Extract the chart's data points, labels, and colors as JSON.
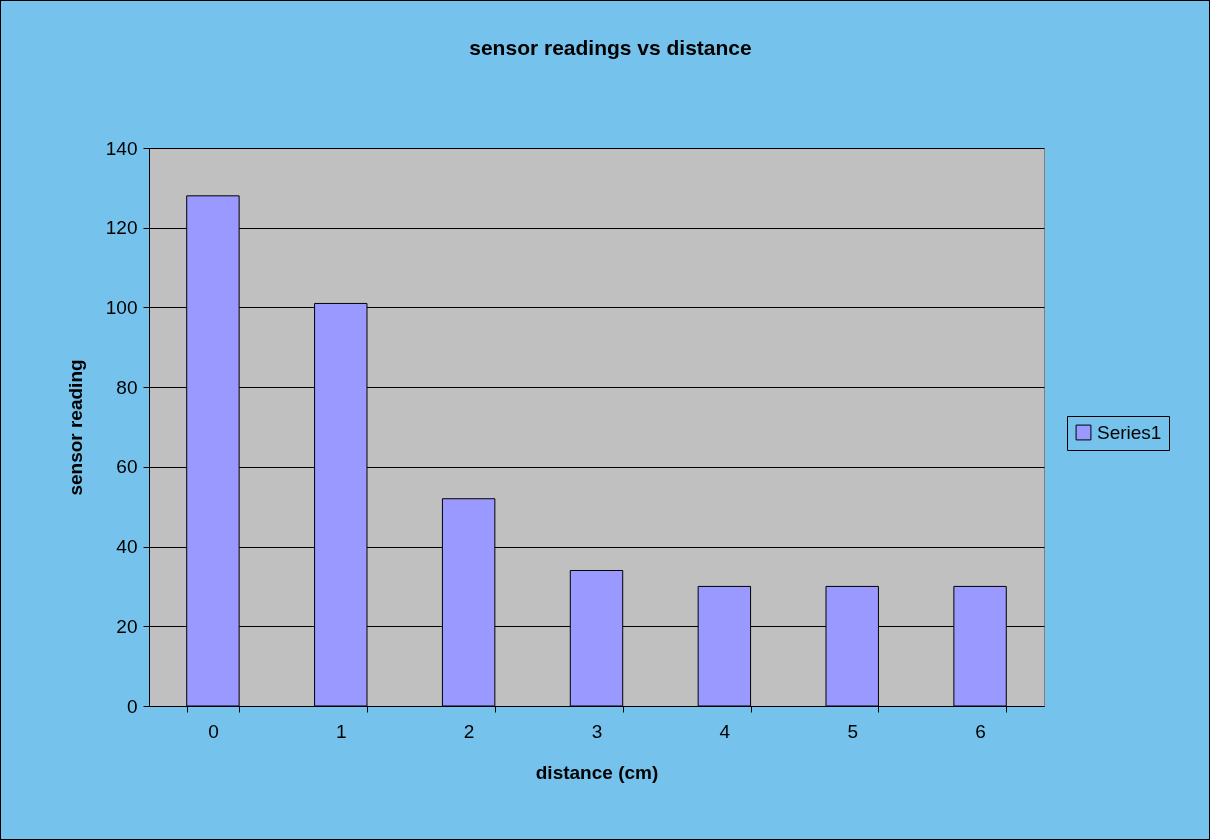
{
  "chart_data": {
    "type": "bar",
    "title": "sensor readings vs distance",
    "xlabel": "distance (cm)",
    "ylabel": "sensor reading",
    "categories": [
      "0",
      "1",
      "2",
      "3",
      "4",
      "5",
      "6"
    ],
    "series": [
      {
        "name": "Series1",
        "color": "#9999ff",
        "values": [
          128,
          101,
          52,
          34,
          30,
          30,
          30
        ]
      }
    ],
    "ylim": [
      0,
      140
    ],
    "yticks": [
      0,
      20,
      40,
      60,
      80,
      100,
      120,
      140
    ],
    "grid": "y",
    "legend": "right"
  }
}
